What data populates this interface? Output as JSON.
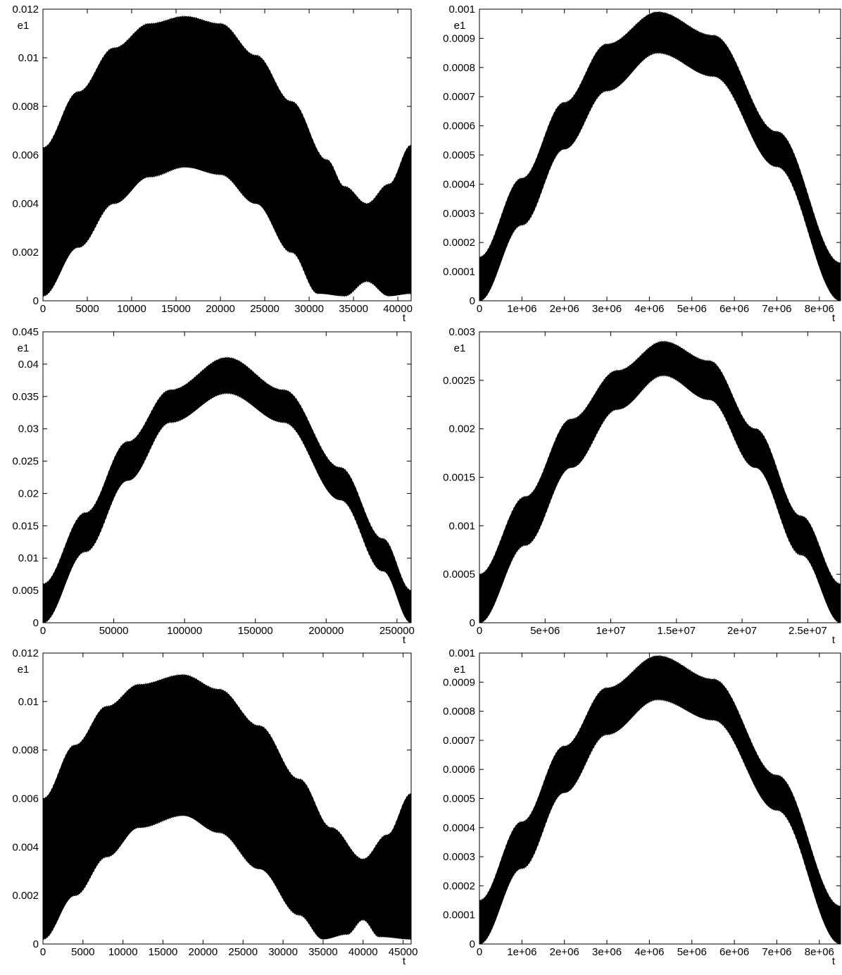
{
  "colors": {
    "band": "#000000",
    "axes": "#000000",
    "background": "#ffffff"
  },
  "chart_data": [
    {
      "type": "area",
      "ylabel": "e1",
      "xlabel": "t",
      "xlim": [
        0,
        41500
      ],
      "ylim": [
        0,
        0.012
      ],
      "xticks": [
        0,
        5000,
        10000,
        15000,
        20000,
        25000,
        30000,
        35000,
        40000
      ],
      "xtick_labels": [
        "0",
        "5000",
        "10000",
        "15000",
        "20000",
        "25000",
        "30000",
        "35000",
        "40000"
      ],
      "yticks": [
        0,
        0.002,
        0.004,
        0.006,
        0.008,
        0.01,
        0.012
      ],
      "ytick_labels": [
        "0",
        "0.002",
        "0.004",
        "0.006",
        "0.008",
        "0.01",
        "0.012"
      ],
      "grid": false,
      "series": [
        {
          "role": "upper",
          "x": [
            0,
            4000,
            8000,
            12000,
            16000,
            20000,
            24000,
            28000,
            32000,
            34000,
            36500,
            39000,
            41500
          ],
          "values": [
            0.0063,
            0.0086,
            0.0104,
            0.0114,
            0.0117,
            0.0114,
            0.0101,
            0.0082,
            0.0058,
            0.0047,
            0.004,
            0.0048,
            0.0064
          ]
        },
        {
          "role": "lower",
          "x": [
            0,
            4000,
            8000,
            12000,
            16000,
            20000,
            24000,
            28000,
            31000,
            34000,
            36500,
            39000,
            41500
          ],
          "values": [
            0.0002,
            0.0022,
            0.004,
            0.0051,
            0.0055,
            0.0052,
            0.004,
            0.002,
            0.0003,
            0.0002,
            0.0008,
            0.0002,
            0.0003
          ]
        }
      ]
    },
    {
      "type": "area",
      "ylabel": "e1",
      "xlabel": "t",
      "xlim": [
        0,
        8500000
      ],
      "ylim": [
        0,
        0.001
      ],
      "xticks": [
        0,
        1000000,
        2000000,
        3000000,
        4000000,
        5000000,
        6000000,
        7000000,
        8000000
      ],
      "xtick_labels": [
        "0",
        "1e+06",
        "2e+06",
        "3e+06",
        "4e+06",
        "5e+06",
        "6e+06",
        "7e+06",
        "8e+06"
      ],
      "yticks": [
        0,
        0.0001,
        0.0002,
        0.0003,
        0.0004,
        0.0005,
        0.0006,
        0.0007,
        0.0008,
        0.0009,
        0.001
      ],
      "ytick_labels": [
        "0",
        "0.0001",
        "0.0002",
        "0.0003",
        "0.0004",
        "0.0005",
        "0.0006",
        "0.0007",
        "0.0008",
        "0.0009",
        "0.001"
      ],
      "grid": false,
      "series": [
        {
          "role": "upper",
          "x": [
            0,
            1000000,
            2000000,
            3000000,
            4200000,
            5500000,
            7000000,
            8500000
          ],
          "values": [
            0.00015,
            0.00042,
            0.00068,
            0.00088,
            0.00099,
            0.00091,
            0.00058,
            0.00013
          ]
        },
        {
          "role": "lower",
          "x": [
            0,
            1000000,
            2000000,
            3000000,
            4200000,
            5500000,
            7000000,
            8500000
          ],
          "values": [
            0.0,
            0.00026,
            0.00052,
            0.00072,
            0.00085,
            0.00077,
            0.00046,
            0.0
          ]
        }
      ]
    },
    {
      "type": "area",
      "ylabel": "e1",
      "xlabel": "t",
      "xlim": [
        0,
        260000
      ],
      "ylim": [
        0,
        0.045
      ],
      "xticks": [
        0,
        50000,
        100000,
        150000,
        200000,
        250000
      ],
      "xtick_labels": [
        "0",
        "50000",
        "100000",
        "150000",
        "200000",
        "250000"
      ],
      "yticks": [
        0,
        0.005,
        0.01,
        0.015,
        0.02,
        0.025,
        0.03,
        0.035,
        0.04,
        0.045
      ],
      "ytick_labels": [
        "0",
        "0.005",
        "0.01",
        "0.015",
        "0.02",
        "0.025",
        "0.03",
        "0.035",
        "0.04",
        "0.045"
      ],
      "grid": false,
      "series": [
        {
          "role": "upper",
          "x": [
            0,
            30000,
            60000,
            90000,
            130000,
            170000,
            210000,
            240000,
            260000
          ],
          "values": [
            0.006,
            0.017,
            0.028,
            0.036,
            0.041,
            0.036,
            0.024,
            0.013,
            0.005
          ]
        },
        {
          "role": "lower",
          "x": [
            0,
            30000,
            60000,
            90000,
            130000,
            170000,
            210000,
            240000,
            260000
          ],
          "values": [
            0.0,
            0.011,
            0.022,
            0.031,
            0.0355,
            0.031,
            0.019,
            0.008,
            0.0
          ]
        }
      ]
    },
    {
      "type": "area",
      "ylabel": "e1",
      "xlabel": "t",
      "xlim": [
        0,
        27500000
      ],
      "ylim": [
        0,
        0.003
      ],
      "xticks": [
        0,
        5000000,
        10000000,
        15000000,
        20000000,
        25000000
      ],
      "xtick_labels": [
        "0",
        "5e+06",
        "1e+07",
        "1.5e+07",
        "2e+07",
        "2.5e+07"
      ],
      "yticks": [
        0,
        0.0005,
        0.001,
        0.0015,
        0.002,
        0.0025,
        0.003
      ],
      "ytick_labels": [
        "0",
        "0.0005",
        "0.001",
        "0.0015",
        "0.002",
        "0.0025",
        "0.003"
      ],
      "grid": false,
      "series": [
        {
          "role": "upper",
          "x": [
            0,
            3500000,
            7000000,
            10500000,
            14000000,
            17500000,
            21000000,
            24500000,
            27500000
          ],
          "values": [
            0.0005,
            0.0013,
            0.0021,
            0.0026,
            0.0029,
            0.0027,
            0.002,
            0.0011,
            0.0004
          ]
        },
        {
          "role": "lower",
          "x": [
            0,
            3500000,
            7000000,
            10500000,
            14000000,
            17500000,
            21000000,
            24500000,
            27500000
          ],
          "values": [
            0.0,
            0.0008,
            0.0016,
            0.0022,
            0.00255,
            0.0023,
            0.0016,
            0.0007,
            0.0
          ]
        }
      ]
    },
    {
      "type": "area",
      "ylabel": "e1",
      "xlabel": "t",
      "xlim": [
        0,
        46000
      ],
      "ylim": [
        0,
        0.012
      ],
      "xticks": [
        0,
        5000,
        10000,
        15000,
        20000,
        25000,
        30000,
        35000,
        40000,
        45000
      ],
      "xtick_labels": [
        "0",
        "5000",
        "10000",
        "15000",
        "20000",
        "25000",
        "30000",
        "35000",
        "40000",
        "45000"
      ],
      "yticks": [
        0,
        0.002,
        0.004,
        0.006,
        0.008,
        0.01,
        0.012
      ],
      "ytick_labels": [
        "0",
        "0.002",
        "0.004",
        "0.006",
        "0.008",
        "0.01",
        "0.012"
      ],
      "grid": false,
      "series": [
        {
          "role": "upper",
          "x": [
            0,
            4000,
            8000,
            12000,
            17500,
            22000,
            27000,
            32000,
            36000,
            40000,
            43000,
            46000
          ],
          "values": [
            0.006,
            0.0082,
            0.0098,
            0.0107,
            0.0111,
            0.0105,
            0.009,
            0.0068,
            0.0048,
            0.0035,
            0.0045,
            0.0062
          ]
        },
        {
          "role": "lower",
          "x": [
            0,
            4000,
            8000,
            12000,
            17500,
            22000,
            27000,
            32000,
            35000,
            38000,
            40000,
            42000,
            46000
          ],
          "values": [
            0.0002,
            0.002,
            0.0036,
            0.0048,
            0.0053,
            0.0046,
            0.0031,
            0.0012,
            0.0002,
            0.0004,
            0.001,
            0.0003,
            0.0002
          ]
        }
      ]
    },
    {
      "type": "area",
      "ylabel": "e1",
      "xlabel": "t",
      "xlim": [
        0,
        8500000
      ],
      "ylim": [
        0,
        0.001
      ],
      "xticks": [
        0,
        1000000,
        2000000,
        3000000,
        4000000,
        5000000,
        6000000,
        7000000,
        8000000
      ],
      "xtick_labels": [
        "0",
        "1e+06",
        "2e+06",
        "3e+06",
        "4e+06",
        "5e+06",
        "6e+06",
        "7e+06",
        "8e+06"
      ],
      "yticks": [
        0,
        0.0001,
        0.0002,
        0.0003,
        0.0004,
        0.0005,
        0.0006,
        0.0007,
        0.0008,
        0.0009,
        0.001
      ],
      "ytick_labels": [
        "0",
        "0.0001",
        "0.0002",
        "0.0003",
        "0.0004",
        "0.0005",
        "0.0006",
        "0.0007",
        "0.0008",
        "0.0009",
        "0.001"
      ],
      "grid": false,
      "series": [
        {
          "role": "upper",
          "x": [
            0,
            1000000,
            2000000,
            3000000,
            4200000,
            5500000,
            7000000,
            8500000
          ],
          "values": [
            0.00015,
            0.00042,
            0.00068,
            0.00088,
            0.00099,
            0.00091,
            0.00058,
            0.00013
          ]
        },
        {
          "role": "lower",
          "x": [
            0,
            1000000,
            2000000,
            3000000,
            4200000,
            5500000,
            7000000,
            8500000
          ],
          "values": [
            0.0,
            0.00026,
            0.00052,
            0.00072,
            0.00084,
            0.00077,
            0.00046,
            0.0
          ]
        }
      ]
    }
  ]
}
